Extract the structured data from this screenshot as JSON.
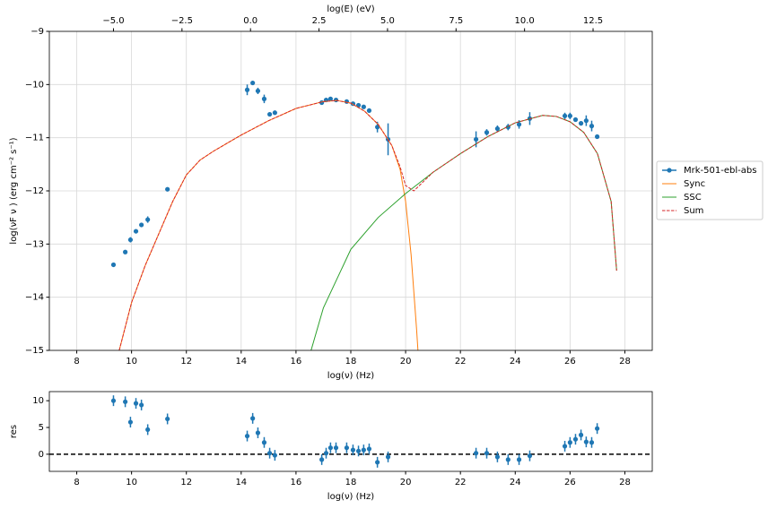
{
  "chart_data": [
    {
      "type": "sed",
      "x_label": "log(ν)  (Hz)",
      "y_label": "log(νF ν )  (erg cm⁻²  s⁻¹)",
      "top_x_label": "log(E) (eV)",
      "xlim": [
        7,
        29
      ],
      "xticks": [
        8,
        10,
        12,
        14,
        16,
        18,
        20,
        22,
        24,
        26,
        28
      ],
      "ylim": [
        -15,
        -9
      ],
      "yticks": [
        {
          "value": -15,
          "label": "−15"
        },
        {
          "value": -14,
          "label": "−14"
        },
        {
          "value": -13,
          "label": "−13"
        },
        {
          "value": -12,
          "label": "−12"
        },
        {
          "value": -11,
          "label": "−11"
        },
        {
          "value": -10,
          "label": "−10"
        },
        {
          "value": -9,
          "label": "−9"
        }
      ],
      "top_xlim": [
        -7.34,
        14.66
      ],
      "top_xticks": [
        {
          "value": -5,
          "label": "−5.0"
        },
        {
          "value": -2.5,
          "label": "−2.5"
        },
        {
          "value": 0,
          "label": "0.0"
        },
        2.5,
        {
          "value": 5,
          "label": "5.0"
        },
        7.5,
        {
          "value": 10,
          "label": "10.0"
        },
        12.5
      ],
      "grid": true,
      "legend": "right",
      "data": {
        "name": "Mrk-501-ebl-abs",
        "color": "#1f77b4",
        "x": [
          9.34,
          9.77,
          9.96,
          10.16,
          10.36,
          10.59,
          11.31,
          14.22,
          14.42,
          14.61,
          14.84,
          15.04,
          15.23,
          16.94,
          17.1,
          17.26,
          17.46,
          17.85,
          18.08,
          18.28,
          18.47,
          18.67,
          18.97,
          19.36,
          22.57,
          22.96,
          23.35,
          23.74,
          24.14,
          24.53,
          25.81,
          26.0,
          26.2,
          26.4,
          26.59,
          26.79,
          26.99
        ],
        "values": [
          -13.39,
          -13.15,
          -12.92,
          -12.76,
          -12.64,
          -12.54,
          -11.97,
          -10.1,
          -9.97,
          -10.12,
          -10.27,
          -10.56,
          -10.53,
          -10.34,
          -10.29,
          -10.27,
          -10.29,
          -10.32,
          -10.36,
          -10.39,
          -10.42,
          -10.49,
          -10.8,
          -11.03,
          -11.03,
          -10.9,
          -10.83,
          -10.8,
          -10.75,
          -10.64,
          -10.59,
          -10.59,
          -10.66,
          -10.73,
          -10.68,
          -10.78,
          -10.98
        ],
        "yerr": [
          0.03,
          0.03,
          0.05,
          0.03,
          0.03,
          0.06,
          0.03,
          0.1,
          0.04,
          0.06,
          0.08,
          0.03,
          0.03,
          0.04,
          0.03,
          0.03,
          0.03,
          0.03,
          0.03,
          0.03,
          0.03,
          0.03,
          0.1,
          0.3,
          0.15,
          0.06,
          0.06,
          0.06,
          0.08,
          0.12,
          0.06,
          0.06,
          0.04,
          0.04,
          0.1,
          0.1,
          0.04
        ]
      },
      "models": [
        {
          "name": "Sync",
          "color": "#ff7f0e",
          "dashed": false,
          "x": [
            9.55,
            10,
            10.5,
            11,
            11.5,
            12,
            12.5,
            13,
            14,
            15,
            16,
            17,
            17.5,
            18,
            18.5,
            19,
            19.5,
            19.8,
            20,
            20.2,
            20.4,
            20.45
          ],
          "values": [
            -15,
            -14.1,
            -13.4,
            -12.8,
            -12.2,
            -11.7,
            -11.42,
            -11.25,
            -10.95,
            -10.68,
            -10.45,
            -10.32,
            -10.3,
            -10.35,
            -10.5,
            -10.75,
            -11.15,
            -11.6,
            -12.2,
            -13.2,
            -14.6,
            -15
          ]
        },
        {
          "name": "SSC",
          "color": "#2ca02c",
          "dashed": false,
          "x": [
            16.55,
            17,
            18,
            19,
            20,
            21,
            22,
            23,
            24,
            25,
            25.5,
            26,
            26.5,
            27,
            27.5,
            27.7
          ],
          "values": [
            -15,
            -14.2,
            -13.1,
            -12.5,
            -12.05,
            -11.65,
            -11.3,
            -10.98,
            -10.72,
            -10.58,
            -10.6,
            -10.7,
            -10.9,
            -11.3,
            -12.2,
            -13.5
          ]
        },
        {
          "name": "Sum",
          "color": "#d62728",
          "dashed": true,
          "x": [
            9.55,
            10,
            10.5,
            11,
            11.5,
            12,
            12.5,
            13,
            14,
            15,
            16,
            17,
            17.5,
            18,
            18.5,
            19,
            19.5,
            19.8,
            20,
            20.3,
            21,
            22,
            23,
            24,
            25,
            25.5,
            26,
            26.5,
            27,
            27.5,
            27.7
          ],
          "values": [
            -15,
            -14.1,
            -13.4,
            -12.8,
            -12.2,
            -11.7,
            -11.42,
            -11.25,
            -10.95,
            -10.68,
            -10.45,
            -10.32,
            -10.3,
            -10.35,
            -10.5,
            -10.75,
            -11.15,
            -11.55,
            -11.9,
            -12.0,
            -11.65,
            -11.3,
            -10.98,
            -10.72,
            -10.58,
            -10.6,
            -10.7,
            -10.9,
            -11.3,
            -12.2,
            -13.5
          ]
        }
      ]
    },
    {
      "type": "residual",
      "x_label": "log(ν)  (Hz)",
      "y_label": "res",
      "xlim": [
        7,
        29
      ],
      "xticks": [
        8,
        10,
        12,
        14,
        16,
        18,
        20,
        22,
        24,
        26,
        28
      ],
      "ylim": [
        -3.2,
        11.7
      ],
      "yticks": [
        0,
        5,
        10
      ],
      "reference_line": 0,
      "color": "#1f77b4",
      "x": [
        9.34,
        9.77,
        9.96,
        10.16,
        10.36,
        10.59,
        11.31,
        14.22,
        14.42,
        14.61,
        14.84,
        15.04,
        15.23,
        16.94,
        17.1,
        17.26,
        17.46,
        17.85,
        18.08,
        18.28,
        18.47,
        18.67,
        18.97,
        19.36,
        22.57,
        22.96,
        23.35,
        23.74,
        24.14,
        24.53,
        25.81,
        26.0,
        26.2,
        26.4,
        26.59,
        26.79,
        26.99
      ],
      "values": [
        10,
        9.8,
        6,
        9.5,
        9.2,
        4.6,
        6.6,
        3.4,
        6.7,
        4,
        2.2,
        0.2,
        -0.2,
        -1,
        0.2,
        1.2,
        1.2,
        1.2,
        0.8,
        0.6,
        0.8,
        1,
        -1.5,
        -0.5,
        0.2,
        0.2,
        -0.5,
        -1,
        -1,
        -0.3,
        1.5,
        2.2,
        2.8,
        3.6,
        2.3,
        2.2,
        4.8
      ],
      "yerr": [
        1,
        1,
        1,
        1,
        1,
        1,
        1,
        1,
        1,
        1,
        1,
        1,
        1,
        1,
        1,
        1,
        1,
        1,
        1,
        1,
        1,
        1,
        1,
        1,
        1,
        1,
        1,
        1,
        1,
        1,
        1,
        1,
        1,
        1,
        1,
        1,
        1
      ]
    }
  ]
}
